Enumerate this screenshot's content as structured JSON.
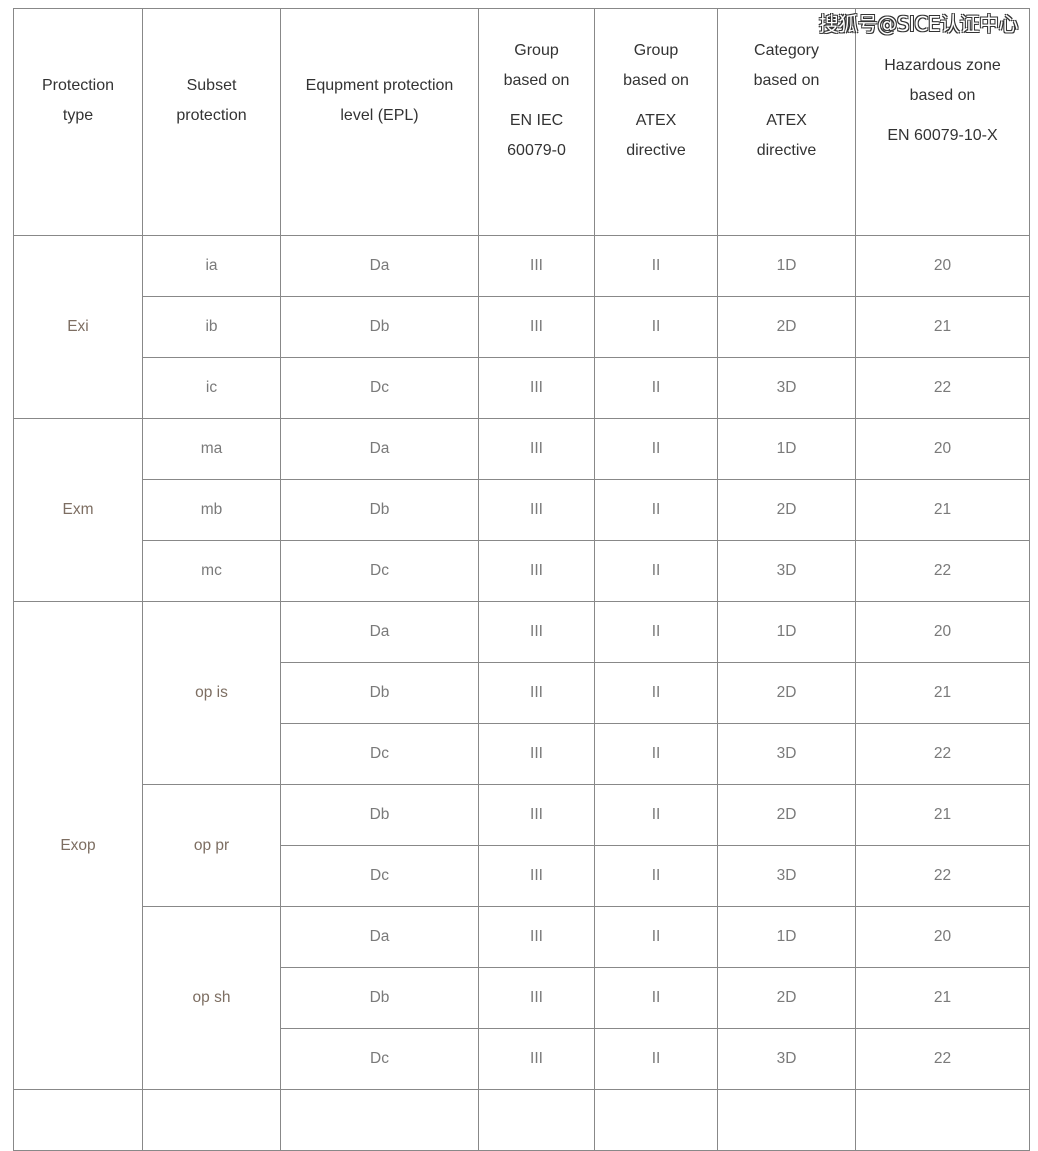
{
  "watermark": "搜狐号@SICE认证中心",
  "headers": [
    [
      "Protection",
      "type"
    ],
    [
      "Subset",
      "protection"
    ],
    [
      "Equpment protection",
      "level (EPL)"
    ],
    [
      "Group",
      "based on",
      "||",
      "EN IEC",
      "60079-0"
    ],
    [
      "Group",
      "based on",
      "||",
      "ATEX",
      "directive"
    ],
    [
      "Category",
      "based on",
      "||",
      "ATEX",
      "directive"
    ],
    [
      "Hazardous zone",
      "based on",
      "||",
      "EN 60079-10-X"
    ]
  ],
  "groups": [
    {
      "type": "Exi",
      "subsets": [
        {
          "name": "ia",
          "rows": [
            [
              "Da",
              "III",
              "II",
              "1D",
              "20"
            ]
          ]
        },
        {
          "name": "ib",
          "rows": [
            [
              "Db",
              "III",
              "II",
              "2D",
              "21"
            ]
          ]
        },
        {
          "name": "ic",
          "rows": [
            [
              "Dc",
              "III",
              "II",
              "3D",
              "22"
            ]
          ]
        }
      ]
    },
    {
      "type": "Exm",
      "subsets": [
        {
          "name": "ma",
          "rows": [
            [
              "Da",
              "III",
              "II",
              "1D",
              "20"
            ]
          ]
        },
        {
          "name": "mb",
          "rows": [
            [
              "Db",
              "III",
              "II",
              "2D",
              "21"
            ]
          ]
        },
        {
          "name": "mc",
          "rows": [
            [
              "Dc",
              "III",
              "II",
              "3D",
              "22"
            ]
          ]
        }
      ]
    },
    {
      "type": "Exop",
      "subsets": [
        {
          "name": "op is",
          "rows": [
            [
              "Da",
              "III",
              "II",
              "1D",
              "20"
            ],
            [
              "Db",
              "III",
              "II",
              "2D",
              "21"
            ],
            [
              "Dc",
              "III",
              "II",
              "3D",
              "22"
            ]
          ]
        },
        {
          "name": "op pr",
          "rows": [
            [
              "Db",
              "III",
              "II",
              "2D",
              "21"
            ],
            [
              "Dc",
              "III",
              "II",
              "3D",
              "22"
            ]
          ]
        },
        {
          "name": "op sh",
          "rows": [
            [
              "Da",
              "III",
              "II",
              "1D",
              "20"
            ],
            [
              "Db",
              "III",
              "II",
              "2D",
              "21"
            ],
            [
              "Dc",
              "III",
              "II",
              "3D",
              "22"
            ]
          ]
        }
      ]
    }
  ]
}
